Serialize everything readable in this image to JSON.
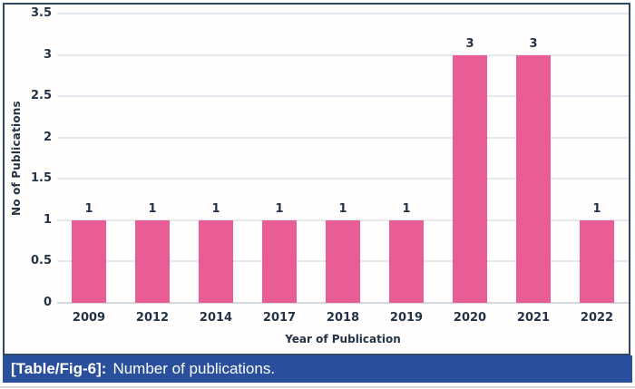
{
  "chart_data": {
    "type": "bar",
    "categories": [
      "2009",
      "2012",
      "2014",
      "2017",
      "2018",
      "2019",
      "2020",
      "2021",
      "2022"
    ],
    "values": [
      1,
      1,
      1,
      1,
      1,
      1,
      3,
      3,
      1
    ],
    "data_labels": [
      "1",
      "1",
      "1",
      "1",
      "1",
      "1",
      "3",
      "3",
      "1"
    ],
    "title": "",
    "xlabel": "Year of Publication",
    "ylabel": "No of Publications",
    "ylim": [
      0,
      3.5
    ],
    "yticks": [
      "0",
      "0.5",
      "1",
      "1.5",
      "2",
      "2.5",
      "3",
      "3.5"
    ],
    "grid": true,
    "legend": false,
    "bar_color": "#e85d96",
    "label_color": "#243448",
    "gridline_color": "#e4e9ef",
    "baseline_color": "#d4dae2",
    "frame_color": "#30486a"
  },
  "caption": {
    "label": "[Table/Fig-6]:",
    "text": "Number of publications.",
    "background": "#2a4f9d"
  }
}
